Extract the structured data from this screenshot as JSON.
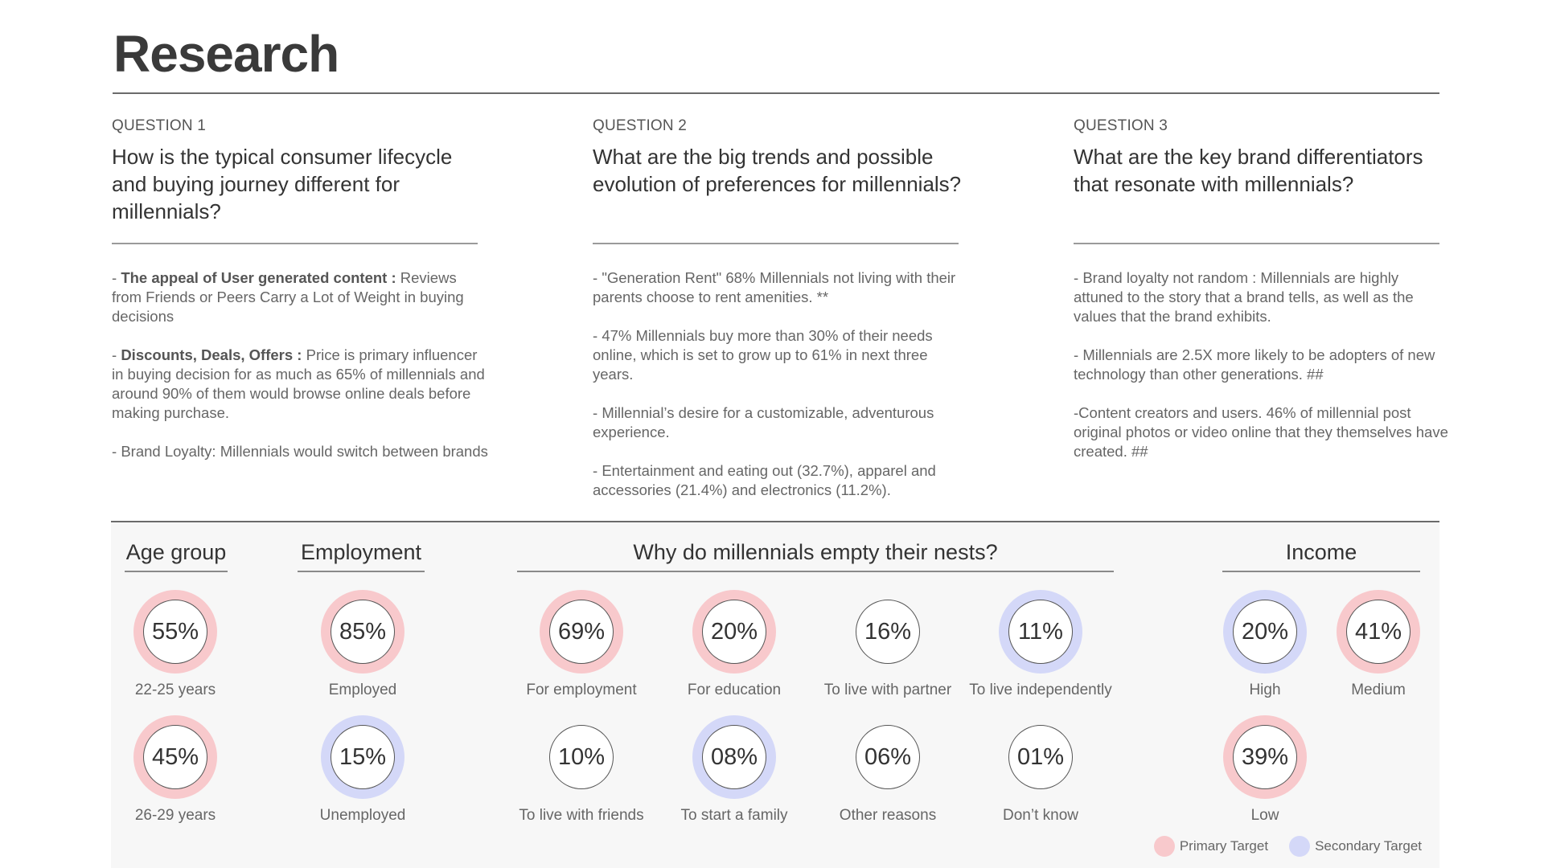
{
  "title": "Research",
  "questions": [
    {
      "num": "QUESTION 1",
      "text": "How is the typical consumer lifecycle and buying journey different for millennials?",
      "points": [
        {
          "lead": "The appeal of User generated content :",
          "rest": " Reviews from Friends or Peers Carry a Lot of Weight in buying decisions"
        },
        {
          "lead": "Discounts, Deals, Offers :",
          "rest": " Price is primary influencer in buying decision for as much as 65% of millennials and around 90% of them would browse online deals before making purchase."
        },
        {
          "lead": "",
          "rest": "Brand Loyalty: Millennials would switch between brands"
        }
      ]
    },
    {
      "num": "QUESTION 2",
      "text": "What are the big trends and possible evolution of preferences for millennials?",
      "points": [
        {
          "lead": "",
          "rest": "\"Generation Rent\" 68% Millennials not living with their parents choose to rent amenities. **"
        },
        {
          "lead": "",
          "rest": "47% Millennials buy more than 30% of their needs online, which is set to grow up to 61% in next three years."
        },
        {
          "lead": "",
          "rest": "Millennial’s desire for a customizable, adventurous experience."
        },
        {
          "lead": "",
          "rest": "Entertainment and eating out (32.7%), apparel and accessories (21.4%) and electronics (11.2%)."
        }
      ]
    },
    {
      "num": "QUESTION 3",
      "text": " What are the key brand differentiators that resonate with millennials?",
      "points": [
        {
          "lead": "",
          "rest": "Brand loyalty not random : Millennials are highly attuned to the story that a brand tells, as well as the values that the brand exhibits."
        },
        {
          "lead": "",
          "rest": "Millennials are 2.5X more likely to be adopters of new technology than other generations. ##"
        },
        {
          "lead": "",
          "rest": "Content creators and users. 46% of millennial post original photos or video online that they themselves have created. ##"
        }
      ]
    }
  ],
  "sections": {
    "age": {
      "title": "Age group",
      "stats": [
        {
          "value": "55%",
          "label": "22-25 years",
          "target": "primary"
        },
        {
          "value": "45%",
          "label": "26-29 years",
          "target": "primary"
        }
      ]
    },
    "employment": {
      "title": "Employment",
      "stats": [
        {
          "value": "85%",
          "label": "Employed",
          "target": "primary"
        },
        {
          "value": "15%",
          "label": "Unemployed",
          "target": "secondary"
        }
      ]
    },
    "nests": {
      "title": "Why do millennials empty their nests?",
      "stats": [
        {
          "value": "69%",
          "label": "For employment",
          "target": "primary"
        },
        {
          "value": "20%",
          "label": "For education",
          "target": "primary"
        },
        {
          "value": "16%",
          "label": "To live with partner",
          "target": "none"
        },
        {
          "value": "11%",
          "label": "To live independently",
          "target": "secondary"
        },
        {
          "value": "10%",
          "label": "To live with friends",
          "target": "none"
        },
        {
          "value": "08%",
          "label": "To start a family",
          "target": "secondary"
        },
        {
          "value": "06%",
          "label": "Other reasons",
          "target": "none"
        },
        {
          "value": "01%",
          "label": "Don’t know",
          "target": "none"
        }
      ]
    },
    "income": {
      "title": "Income",
      "stats": [
        {
          "value": "20%",
          "label": "High",
          "target": "secondary"
        },
        {
          "value": "41%",
          "label": "Medium",
          "target": "primary"
        },
        {
          "value": "39%",
          "label": "Low",
          "target": "primary"
        }
      ]
    }
  },
  "legend": {
    "primary": "Primary Target",
    "secondary": "Secondary Target"
  },
  "colors": {
    "primary": "#f8c9cc",
    "secondary": "#d4d8f8"
  }
}
